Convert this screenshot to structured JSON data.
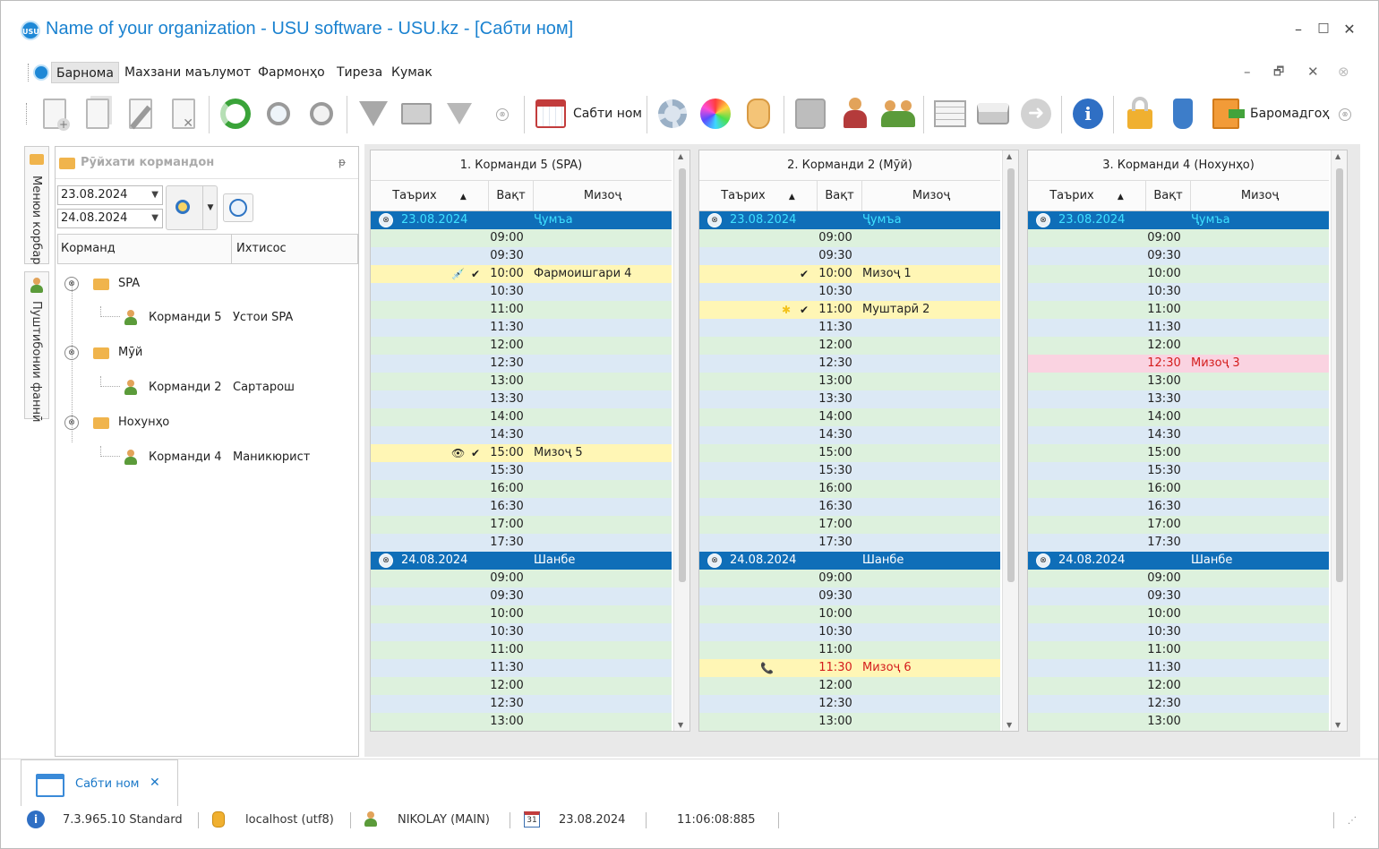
{
  "window": {
    "title": "Name of your organization - USU software - USU.kz - [Сабти ном]",
    "logo_text": "USU",
    "minimize": "–",
    "maximize": "□",
    "close": "✕"
  },
  "menu": {
    "items": [
      "Барнома",
      "Махзани маълумот",
      "Фармонҳо",
      "Тиреза",
      "Кумак"
    ],
    "mdi": [
      "–",
      "🗗",
      "✕",
      "⊗"
    ]
  },
  "toolbar": {
    "schedule_label": "Сабти ном",
    "exit_label": "Баромадгоҳ"
  },
  "sidebar_tabs": {
    "menu": "Менюи корбар",
    "support": "Пуштибонии фаннӣ"
  },
  "staff_panel": {
    "title": "Рӯйхати кормандон",
    "date_from": "23.08.2024",
    "date_to": "24.08.2024",
    "col_employee": "Корманд",
    "col_specialty": "Ихтисос",
    "groups": [
      {
        "name": "SPA",
        "employee": "Корманди 5",
        "specialty": "Устои SPA"
      },
      {
        "name": "Мӯй",
        "employee": "Корманди 2",
        "specialty": "Сартарош"
      },
      {
        "name": "Нохунҳо",
        "employee": "Корманди 4",
        "specialty": "Маникюрист"
      }
    ]
  },
  "schedule": {
    "col_date": "Таърих",
    "col_time": "Вақт",
    "col_client": "Мизоҷ",
    "columns": [
      {
        "title": "1. Корманди 5 (SPA)",
        "day1": {
          "date": "23.08.2024",
          "dayname": "Ҷумъа"
        },
        "day2": {
          "date": "24.08.2024",
          "dayname": "Шанбе"
        },
        "appointments": [
          {
            "time": "10:00",
            "client": "Фармоишгари 4",
            "icon": "syringe",
            "check": true
          },
          {
            "time": "15:00",
            "client": "Мизоҷ 5",
            "icon": "eye",
            "check": true
          }
        ]
      },
      {
        "title": "2. Корманди 2 (Мӯй)",
        "day1": {
          "date": "23.08.2024",
          "dayname": "Ҷумъа"
        },
        "day2": {
          "date": "24.08.2024",
          "dayname": "Шанбе"
        },
        "appointments": [
          {
            "time": "10:00",
            "client": "Мизоҷ 1",
            "icon": "",
            "check": true
          },
          {
            "time": "11:00",
            "client": "Муштарӣ 2",
            "icon": "star",
            "check": true
          },
          {
            "time": "11:30",
            "client": "Мизоҷ 6",
            "icon": "phone",
            "check": false,
            "day": 2
          }
        ]
      },
      {
        "title": "3. Корманди 4 (Нохунҳо)",
        "day1": {
          "date": "23.08.2024",
          "dayname": "Ҷумъа"
        },
        "day2": {
          "date": "24.08.2024",
          "dayname": "Шанбе"
        },
        "appointments": [
          {
            "time": "12:30",
            "client": "Мизоҷ 3",
            "icon": "",
            "check": false
          }
        ]
      }
    ],
    "times_day1": [
      "09:00",
      "09:30",
      "10:00",
      "10:30",
      "11:00",
      "11:30",
      "12:00",
      "12:30",
      "13:00",
      "13:30",
      "14:00",
      "14:30",
      "15:00",
      "15:30",
      "16:00",
      "16:30",
      "17:00",
      "17:30"
    ],
    "times_day2": [
      "09:00",
      "09:30",
      "10:00",
      "10:30",
      "11:00",
      "11:30",
      "12:00",
      "12:30",
      "13:00"
    ]
  },
  "doc_tab": {
    "label": "Сабти ном",
    "close": "✕"
  },
  "status": {
    "version": "7.3.965.10 Standard",
    "db": "localhost (utf8)",
    "user": "NIKOLAY (MAIN)",
    "date": "23.08.2024",
    "time": "11:06:08:885",
    "cal_day": "31"
  }
}
